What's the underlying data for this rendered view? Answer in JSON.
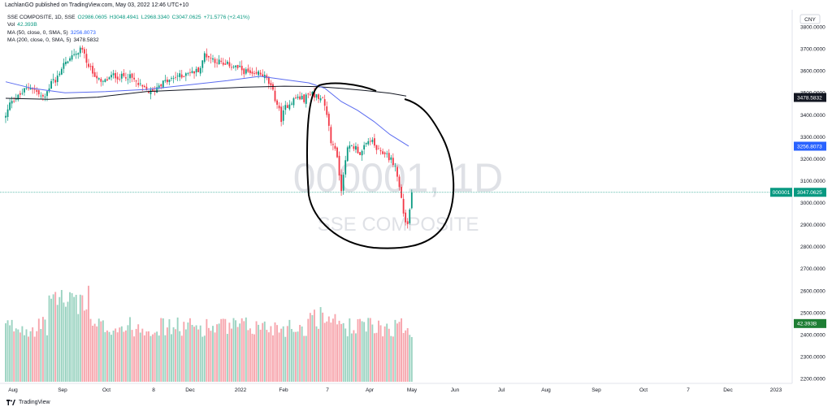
{
  "header": {
    "text": "LachlanGO published on TradingView.com, May 03, 2022 12:46 UTC+10"
  },
  "legend": {
    "symbol": "SSE COMPOSITE, 1D, SSE",
    "open": "O2986.0605",
    "high": "H3048.4941",
    "low": "L2968.3340",
    "close": "C3047.0625",
    "change": "+71.5776 (+2.41%)",
    "vol_label": "Vol",
    "vol_value": "42.393B",
    "ma50_label": "MA (50, close, 0, SMA, 5)",
    "ma50_value": "3256.8073",
    "ma200_label": "MA (200, close, 0, SMA, 5)",
    "ma200_value": "3478.5832"
  },
  "watermark": {
    "symbol": "000001, 1D",
    "name": "SSE COMPOSITE"
  },
  "currency": "CNY",
  "footer": {
    "logo_text": "TradingView"
  },
  "colors": {
    "up": "#089981",
    "down": "#f23645",
    "vol_up": "#9bd3c1",
    "vol_down": "#f7a6ad",
    "ma50": "#5b6cf0",
    "ma200": "#131722",
    "price_line": "#089981"
  },
  "chart_data": {
    "type": "candlestick",
    "price_axis": {
      "min": 2200,
      "max": 3800,
      "ticks": [
        "3800.0000",
        "3700.0000",
        "3600.0000",
        "3500.0000",
        "3400.0000",
        "3300.0000",
        "3200.0000",
        "3100.0000",
        "3000.0000",
        "2900.0000",
        "2800.0000",
        "2700.0000",
        "2600.0000",
        "2500.0000",
        "2400.0000",
        "2300.0000",
        "2200.0000"
      ]
    },
    "time_axis": {
      "ticks": [
        "Aug",
        "Sep",
        "Oct",
        "8",
        "Dec",
        "2022",
        "Feb",
        "7",
        "Apr",
        "May",
        "Jun",
        "Jul",
        "Aug",
        "Sep",
        "Oct",
        "7",
        "Dec",
        "2023"
      ]
    },
    "badges": [
      {
        "label": "",
        "value": "3478.5832",
        "price": 3478.58,
        "color": "#131722"
      },
      {
        "label": "",
        "value": "3256.8073",
        "price": 3256.81,
        "color": "#2962ff"
      },
      {
        "label": "000001",
        "value": "3047.0625",
        "price": 3047.06,
        "color": "#089981"
      },
      {
        "label": "",
        "value": "42.393B",
        "price": 2450,
        "color": "#1e7e34"
      }
    ],
    "last_price": 3047.06,
    "ma50_last": 3256.81,
    "ma200_last": 3478.58,
    "series_summary": "SSE Composite daily, Jul 2021 – Apr 2022, range ~3400–3700, sharp decline Mar–Apr 2022 to ~2870, rebound to 3047"
  }
}
